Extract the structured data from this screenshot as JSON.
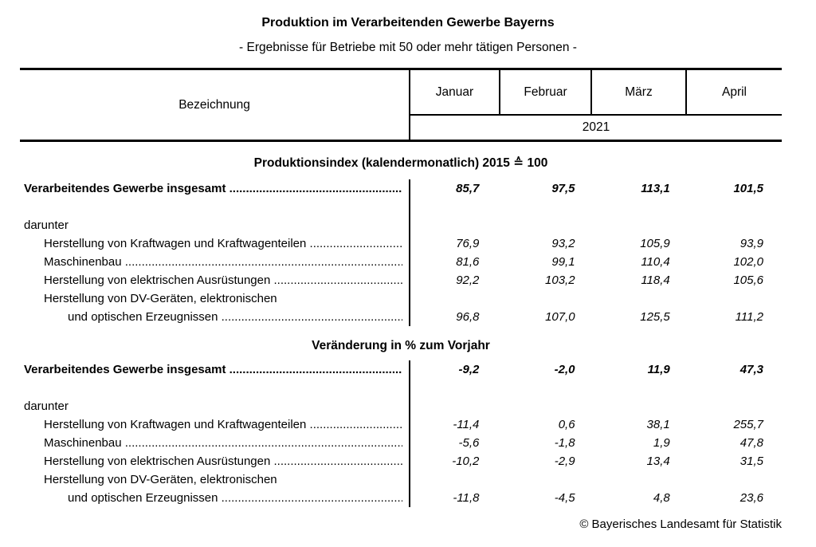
{
  "title": "Produktion im Verarbeitenden Gewerbe Bayerns",
  "subtitle": "- Ergebnisse für Betriebe mit 50 oder mehr tätigen Personen -",
  "table": {
    "label_column_header": "Bezeichnung",
    "month_columns": [
      "Januar",
      "Februar",
      "März",
      "April"
    ],
    "year": "2021",
    "leader_dots": "..............................................................................................................",
    "sections": [
      {
        "heading": "Produktionsindex (kalendermonatlich) 2015 ≙ 100",
        "rows": [
          {
            "label": "Verarbeitendes Gewerbe insgesamt",
            "leader": true,
            "style": "total",
            "values": [
              "85,7",
              "97,5",
              "113,1",
              "101,5"
            ]
          },
          {
            "label": "darunter",
            "leader": false,
            "style": "group",
            "values": []
          },
          {
            "label": "Herstellung von Kraftwagen und Kraftwagenteilen",
            "leader": true,
            "style": "sub",
            "values": [
              "76,9",
              "93,2",
              "105,9",
              "93,9"
            ]
          },
          {
            "label": "Maschinenbau",
            "leader": true,
            "style": "sub",
            "values": [
              "81,6",
              "99,1",
              "110,4",
              "102,0"
            ]
          },
          {
            "label": "Herstellung von elektrischen Ausrüstungen",
            "leader": true,
            "style": "sub",
            "values": [
              "92,2",
              "103,2",
              "118,4",
              "105,6"
            ]
          },
          {
            "label": "Herstellung von DV-Geräten, elektronischen",
            "leader": false,
            "style": "sub",
            "values": []
          },
          {
            "label": "und optischen Erzeugnissen",
            "leader": true,
            "style": "sub2",
            "values": [
              "96,8",
              "107,0",
              "125,5",
              "111,2"
            ]
          }
        ]
      },
      {
        "heading": "Veränderung in % zum Vorjahr",
        "rows": [
          {
            "label": "Verarbeitendes Gewerbe insgesamt",
            "leader": true,
            "style": "total",
            "values": [
              "-9,2",
              "-2,0",
              "11,9",
              "47,3"
            ]
          },
          {
            "label": "darunter",
            "leader": false,
            "style": "group",
            "values": []
          },
          {
            "label": "Herstellung von Kraftwagen und Kraftwagenteilen",
            "leader": true,
            "style": "sub",
            "values": [
              "-11,4",
              "0,6",
              "38,1",
              "255,7"
            ]
          },
          {
            "label": "Maschinenbau",
            "leader": true,
            "style": "sub",
            "values": [
              "-5,6",
              "-1,8",
              "1,9",
              "47,8"
            ]
          },
          {
            "label": "Herstellung von elektrischen Ausrüstungen",
            "leader": true,
            "style": "sub",
            "values": [
              "-10,2",
              "-2,9",
              "13,4",
              "31,5"
            ]
          },
          {
            "label": "Herstellung von DV-Geräten, elektronischen",
            "leader": false,
            "style": "sub",
            "values": []
          },
          {
            "label": "und optischen Erzeugnissen",
            "leader": true,
            "style": "sub2",
            "values": [
              "-11,8",
              "-4,5",
              "4,8",
              "23,6"
            ]
          }
        ]
      }
    ]
  },
  "footer": "© Bayerisches Landesamt für Statistik"
}
